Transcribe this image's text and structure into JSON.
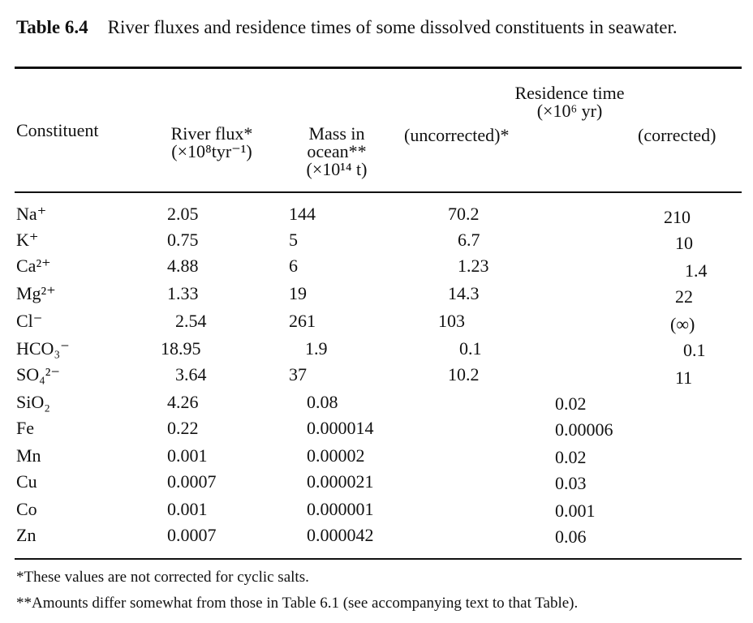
{
  "caption": {
    "label": "Table 6.4",
    "text": "River fluxes and residence times of some dissolved constituents in seawater."
  },
  "headers": {
    "constituent": "Constituent",
    "river_flux": "River flux*",
    "river_flux_unit": "(×10⁸tyr⁻¹)",
    "mass_l1": "Mass in",
    "mass_l2": "ocean**",
    "mass_unit": "(×10¹⁴ t)",
    "residence": "Residence time",
    "residence_unit": "(×10⁶ yr)",
    "uncorrected": "(uncorrected)*",
    "corrected": "(corrected)"
  },
  "rows_split": [
    {
      "constituent": "Na⁺",
      "flux": "2.05",
      "mass": "144",
      "uncorrected": "70.2",
      "corrected": "210"
    },
    {
      "constituent": "K⁺",
      "flux": "0.75",
      "mass": "5",
      "uncorrected": "6.7",
      "corrected": "10"
    },
    {
      "constituent": "Ca²⁺",
      "flux": "4.88",
      "mass": "6",
      "uncorrected": "1.23",
      "corrected": "1.4"
    },
    {
      "constituent": "Mg²⁺",
      "flux": "1.33",
      "mass": "19",
      "uncorrected": "14.3",
      "corrected": "22"
    },
    {
      "constituent": "Cl⁻",
      "flux": "2.54",
      "mass": "261",
      "uncorrected": "103",
      "corrected": "(∞)"
    },
    {
      "constituent": "HCO₃⁻",
      "flux": "18.95",
      "mass": "1.9",
      "uncorrected": "0.1",
      "corrected": "0.1"
    },
    {
      "constituent": "SO₄²⁻",
      "flux": "3.64",
      "mass": "37",
      "uncorrected": "10.2",
      "corrected": "11"
    }
  ],
  "rows_single": [
    {
      "constituent": "SiO₂",
      "flux": "4.26",
      "mass": "0.08",
      "residence": "0.02"
    },
    {
      "constituent": "Fe",
      "flux": "0.22",
      "mass": "0.000014",
      "residence": "0.00006"
    },
    {
      "constituent": "Mn",
      "flux": "0.001",
      "mass": "0.00002",
      "residence": "0.02"
    },
    {
      "constituent": "Cu",
      "flux": "0.0007",
      "mass": "0.000021",
      "residence": "0.03"
    },
    {
      "constituent": "Co",
      "flux": "0.001",
      "mass": "0.000001",
      "residence": "0.001"
    },
    {
      "constituent": "Zn",
      "flux": "0.0007",
      "mass": "0.000042",
      "residence": "0.06"
    }
  ],
  "footnotes": [
    "*These values are not corrected for cyclic salts.",
    "**Amounts differ somewhat from those in Table 6.1 (see accompanying text to that Table)."
  ]
}
